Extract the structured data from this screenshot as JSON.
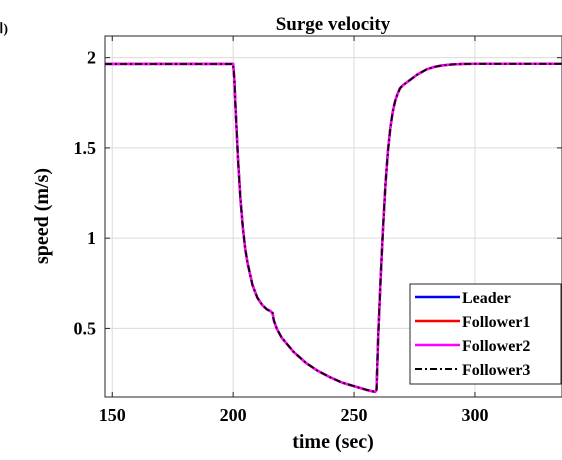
{
  "panel_label": "(الف)",
  "chart_data": {
    "type": "line",
    "title": "Surge velocity",
    "xlabel": "time (sec)",
    "ylabel": "speed (m/s)",
    "xlim": [
      147,
      336
    ],
    "ylim": [
      0.12,
      2.12
    ],
    "xticks": [
      150,
      200,
      250,
      300
    ],
    "yticks": [
      0.5,
      1,
      1.5,
      2
    ],
    "ytick_labels": [
      "0.5",
      "1",
      "1.5",
      "2"
    ],
    "grid": true,
    "legend_position": "bottom-right",
    "series": [
      {
        "name": "Leader",
        "color": "#0000ff",
        "style": "solid",
        "x": [
          147,
          200,
          200.5,
          201,
          202,
          203,
          204,
          205,
          206,
          208,
          210,
          212,
          214,
          215.5,
          216.3,
          216.8,
          218,
          220,
          225,
          230,
          235,
          240,
          245,
          250,
          255,
          258.7,
          259.3,
          260,
          261,
          262,
          263,
          264,
          265,
          266,
          267,
          268,
          269,
          270,
          271,
          272,
          274,
          276,
          278,
          280,
          283,
          286,
          290,
          295,
          300,
          310,
          320,
          336
        ],
        "y": [
          1.965,
          1.965,
          1.88,
          1.72,
          1.44,
          1.22,
          1.06,
          0.94,
          0.86,
          0.74,
          0.67,
          0.63,
          0.605,
          0.595,
          0.585,
          0.545,
          0.5,
          0.45,
          0.37,
          0.31,
          0.265,
          0.23,
          0.2,
          0.18,
          0.16,
          0.148,
          0.16,
          0.46,
          0.78,
          1.06,
          1.3,
          1.48,
          1.61,
          1.7,
          1.76,
          1.8,
          1.83,
          1.845,
          1.855,
          1.865,
          1.885,
          1.905,
          1.92,
          1.935,
          1.948,
          1.956,
          1.962,
          1.965,
          1.966,
          1.966,
          1.966,
          1.966
        ]
      },
      {
        "name": "Follower1",
        "color": "#ff0000",
        "style": "solid",
        "x": [
          147,
          200,
          200.5,
          201,
          202,
          203,
          204,
          205,
          206,
          208,
          210,
          212,
          214,
          215.5,
          216.3,
          216.8,
          218,
          220,
          225,
          230,
          235,
          240,
          245,
          250,
          255,
          258.7,
          259.3,
          260,
          261,
          262,
          263,
          264,
          265,
          266,
          267,
          268,
          269,
          270,
          271,
          272,
          274,
          276,
          278,
          280,
          283,
          286,
          290,
          295,
          300,
          310,
          320,
          336
        ],
        "y": [
          1.965,
          1.965,
          1.88,
          1.72,
          1.44,
          1.22,
          1.06,
          0.94,
          0.86,
          0.74,
          0.67,
          0.63,
          0.605,
          0.595,
          0.585,
          0.545,
          0.5,
          0.45,
          0.37,
          0.31,
          0.265,
          0.23,
          0.2,
          0.18,
          0.16,
          0.148,
          0.16,
          0.46,
          0.78,
          1.06,
          1.3,
          1.48,
          1.61,
          1.7,
          1.76,
          1.8,
          1.83,
          1.845,
          1.855,
          1.865,
          1.885,
          1.905,
          1.92,
          1.935,
          1.948,
          1.956,
          1.962,
          1.965,
          1.966,
          1.966,
          1.966,
          1.966
        ]
      },
      {
        "name": "Follower2",
        "color": "#ff00ff",
        "style": "solid",
        "x": [
          147,
          200,
          200.5,
          201,
          202,
          203,
          204,
          205,
          206,
          208,
          210,
          212,
          214,
          215.5,
          216.3,
          216.8,
          218,
          220,
          225,
          230,
          235,
          240,
          245,
          250,
          255,
          258.7,
          259.3,
          260,
          261,
          262,
          263,
          264,
          265,
          266,
          267,
          268,
          269,
          270,
          271,
          272,
          274,
          276,
          278,
          280,
          283,
          286,
          290,
          295,
          300,
          310,
          320,
          336
        ],
        "y": [
          1.965,
          1.965,
          1.88,
          1.72,
          1.44,
          1.22,
          1.06,
          0.94,
          0.86,
          0.74,
          0.67,
          0.63,
          0.605,
          0.595,
          0.585,
          0.545,
          0.5,
          0.45,
          0.37,
          0.31,
          0.265,
          0.23,
          0.2,
          0.18,
          0.16,
          0.148,
          0.16,
          0.46,
          0.78,
          1.06,
          1.3,
          1.48,
          1.61,
          1.7,
          1.76,
          1.8,
          1.83,
          1.845,
          1.855,
          1.865,
          1.885,
          1.905,
          1.92,
          1.935,
          1.948,
          1.956,
          1.962,
          1.965,
          1.966,
          1.966,
          1.966,
          1.966
        ]
      },
      {
        "name": "Follower3",
        "color": "#000000",
        "style": "dashdot",
        "x": [
          147,
          200,
          200.5,
          201,
          202,
          203,
          204,
          205,
          206,
          208,
          210,
          212,
          214,
          215.5,
          216.3,
          216.8,
          218,
          220,
          225,
          230,
          235,
          240,
          245,
          250,
          255,
          258.7,
          259.3,
          260,
          261,
          262,
          263,
          264,
          265,
          266,
          267,
          268,
          269,
          270,
          271,
          272,
          274,
          276,
          278,
          280,
          283,
          286,
          290,
          295,
          300,
          310,
          320,
          336
        ],
        "y": [
          1.965,
          1.965,
          1.88,
          1.72,
          1.44,
          1.22,
          1.06,
          0.94,
          0.86,
          0.74,
          0.67,
          0.63,
          0.605,
          0.595,
          0.585,
          0.545,
          0.5,
          0.45,
          0.37,
          0.31,
          0.265,
          0.23,
          0.2,
          0.18,
          0.16,
          0.148,
          0.16,
          0.46,
          0.78,
          1.06,
          1.3,
          1.48,
          1.61,
          1.7,
          1.76,
          1.8,
          1.83,
          1.845,
          1.855,
          1.865,
          1.885,
          1.905,
          1.92,
          1.935,
          1.948,
          1.956,
          1.962,
          1.965,
          1.966,
          1.966,
          1.966,
          1.966
        ]
      }
    ]
  }
}
